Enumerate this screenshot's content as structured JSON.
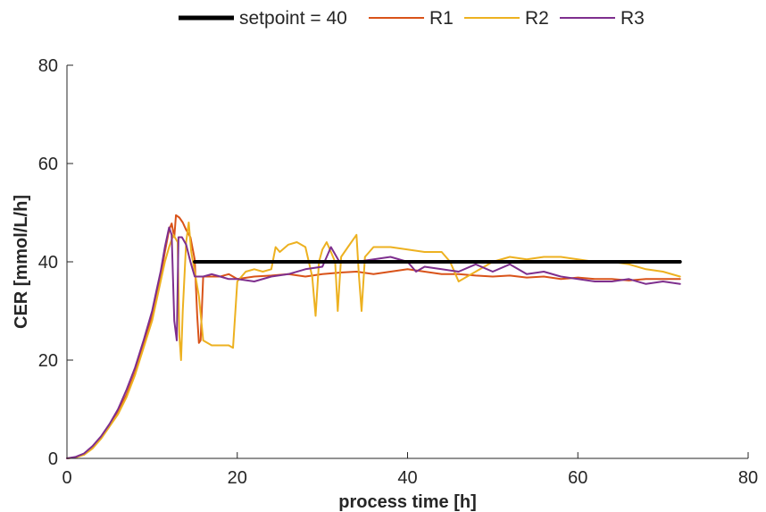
{
  "chart_data": {
    "type": "line",
    "title": "",
    "xlabel": "process time [h]",
    "ylabel": "CER [mmol/L/h]",
    "xlim": [
      0,
      80
    ],
    "ylim": [
      0,
      80
    ],
    "xticks": [
      0,
      20,
      40,
      60,
      80
    ],
    "yticks": [
      0,
      20,
      40,
      60,
      80
    ],
    "grid": false,
    "legend_position": "top",
    "series": [
      {
        "name": "setpoint = 40",
        "color": "#000000",
        "style": "thick",
        "points": [
          [
            15,
            40
          ],
          [
            72,
            40
          ]
        ]
      },
      {
        "name": "R1",
        "color": "#D95319",
        "style": "normal",
        "points": [
          [
            0,
            0
          ],
          [
            1,
            0.2
          ],
          [
            2,
            0.8
          ],
          [
            3,
            2.2
          ],
          [
            4,
            4.3
          ],
          [
            5,
            6.8
          ],
          [
            6,
            9.5
          ],
          [
            7,
            13
          ],
          [
            8,
            17.5
          ],
          [
            9,
            23
          ],
          [
            10,
            29
          ],
          [
            10.5,
            33
          ],
          [
            11,
            37
          ],
          [
            11.5,
            42
          ],
          [
            12,
            46.5
          ],
          [
            12.3,
            47.8
          ],
          [
            12.6,
            45
          ],
          [
            12.8,
            49.5
          ],
          [
            13.2,
            49
          ],
          [
            13.6,
            48
          ],
          [
            14,
            46.5
          ],
          [
            14.5,
            45
          ],
          [
            15,
            40.5
          ],
          [
            15.3,
            29
          ],
          [
            15.5,
            23.5
          ],
          [
            15.7,
            24
          ],
          [
            16,
            37
          ],
          [
            17,
            37
          ],
          [
            18,
            37
          ],
          [
            19,
            37.5
          ],
          [
            20,
            36.5
          ],
          [
            22,
            37
          ],
          [
            24,
            37.2
          ],
          [
            26,
            37.5
          ],
          [
            28,
            37
          ],
          [
            30,
            37.5
          ],
          [
            32,
            37.8
          ],
          [
            34,
            38
          ],
          [
            36,
            37.5
          ],
          [
            38,
            38
          ],
          [
            40,
            38.5
          ],
          [
            42,
            38
          ],
          [
            44,
            37.5
          ],
          [
            46,
            37.5
          ],
          [
            48,
            37.2
          ],
          [
            50,
            37
          ],
          [
            52,
            37.2
          ],
          [
            54,
            36.8
          ],
          [
            56,
            37
          ],
          [
            58,
            36.5
          ],
          [
            60,
            36.8
          ],
          [
            62,
            36.5
          ],
          [
            64,
            36.5
          ],
          [
            66,
            36.2
          ],
          [
            68,
            36.5
          ],
          [
            70,
            36.5
          ],
          [
            72,
            36.5
          ]
        ]
      },
      {
        "name": "R2",
        "color": "#EDB120",
        "style": "normal",
        "points": [
          [
            0,
            0
          ],
          [
            1,
            0.2
          ],
          [
            2,
            0.7
          ],
          [
            3,
            2
          ],
          [
            4,
            4
          ],
          [
            5,
            6.5
          ],
          [
            6,
            9
          ],
          [
            7,
            12.5
          ],
          [
            8,
            17
          ],
          [
            9,
            22.5
          ],
          [
            10,
            28
          ],
          [
            11,
            36
          ],
          [
            11.5,
            40
          ],
          [
            12,
            43
          ],
          [
            12.5,
            45.5
          ],
          [
            13,
            44
          ],
          [
            13.2,
            25
          ],
          [
            13.4,
            20
          ],
          [
            13.6,
            30
          ],
          [
            14,
            44
          ],
          [
            14.3,
            48
          ],
          [
            14.6,
            42
          ],
          [
            15,
            38
          ],
          [
            15.5,
            33
          ],
          [
            16,
            24
          ],
          [
            17,
            23
          ],
          [
            18,
            23
          ],
          [
            19,
            23
          ],
          [
            19.5,
            22.5
          ],
          [
            20,
            36
          ],
          [
            21,
            38
          ],
          [
            22,
            38.5
          ],
          [
            23,
            38
          ],
          [
            24,
            38.5
          ],
          [
            24.5,
            43
          ],
          [
            25,
            42
          ],
          [
            26,
            43.5
          ],
          [
            27,
            44
          ],
          [
            28,
            43
          ],
          [
            28.8,
            37
          ],
          [
            29.2,
            29
          ],
          [
            29.6,
            40
          ],
          [
            30,
            42.5
          ],
          [
            30.5,
            44
          ],
          [
            31,
            42
          ],
          [
            31.5,
            40
          ],
          [
            31.8,
            30
          ],
          [
            32.2,
            41
          ],
          [
            33,
            43
          ],
          [
            34,
            45.5
          ],
          [
            34.3,
            37
          ],
          [
            34.6,
            30
          ],
          [
            35,
            41
          ],
          [
            36,
            43
          ],
          [
            38,
            43
          ],
          [
            40,
            42.5
          ],
          [
            42,
            42
          ],
          [
            44,
            42
          ],
          [
            45,
            40
          ],
          [
            46,
            36
          ],
          [
            48,
            38
          ],
          [
            50,
            40
          ],
          [
            52,
            41
          ],
          [
            54,
            40.5
          ],
          [
            56,
            41
          ],
          [
            58,
            41
          ],
          [
            60,
            40.5
          ],
          [
            62,
            40
          ],
          [
            64,
            40
          ],
          [
            66,
            39.5
          ],
          [
            68,
            38.5
          ],
          [
            70,
            38
          ],
          [
            72,
            37
          ]
        ]
      },
      {
        "name": "R3",
        "color": "#7E2F8E",
        "style": "normal",
        "points": [
          [
            0,
            0
          ],
          [
            1,
            0.3
          ],
          [
            2,
            1
          ],
          [
            3,
            2.5
          ],
          [
            4,
            4.5
          ],
          [
            5,
            7
          ],
          [
            6,
            10
          ],
          [
            7,
            14
          ],
          [
            8,
            18.5
          ],
          [
            9,
            24
          ],
          [
            10,
            30
          ],
          [
            10.5,
            34
          ],
          [
            11,
            38
          ],
          [
            11.5,
            43
          ],
          [
            12,
            47
          ],
          [
            12.3,
            45.5
          ],
          [
            12.6,
            28
          ],
          [
            12.9,
            24
          ],
          [
            13.1,
            45
          ],
          [
            13.5,
            45
          ],
          [
            14,
            43.5
          ],
          [
            14.5,
            40
          ],
          [
            15,
            37
          ],
          [
            15.5,
            37
          ],
          [
            16,
            37
          ],
          [
            17,
            37.5
          ],
          [
            18,
            37
          ],
          [
            19,
            36.5
          ],
          [
            20,
            36.5
          ],
          [
            22,
            36
          ],
          [
            24,
            37
          ],
          [
            26,
            37.5
          ],
          [
            28,
            38.5
          ],
          [
            30,
            39
          ],
          [
            31,
            43
          ],
          [
            32,
            40
          ],
          [
            34,
            40
          ],
          [
            36,
            40.5
          ],
          [
            38,
            41
          ],
          [
            40,
            40
          ],
          [
            41,
            38
          ],
          [
            42,
            39
          ],
          [
            44,
            38.5
          ],
          [
            46,
            38
          ],
          [
            48,
            39.5
          ],
          [
            50,
            38
          ],
          [
            52,
            39.5
          ],
          [
            54,
            37.5
          ],
          [
            56,
            38
          ],
          [
            58,
            37
          ],
          [
            60,
            36.5
          ],
          [
            62,
            36
          ],
          [
            64,
            36
          ],
          [
            66,
            36.5
          ],
          [
            68,
            35.5
          ],
          [
            70,
            36
          ],
          [
            72,
            35.5
          ]
        ]
      }
    ]
  }
}
